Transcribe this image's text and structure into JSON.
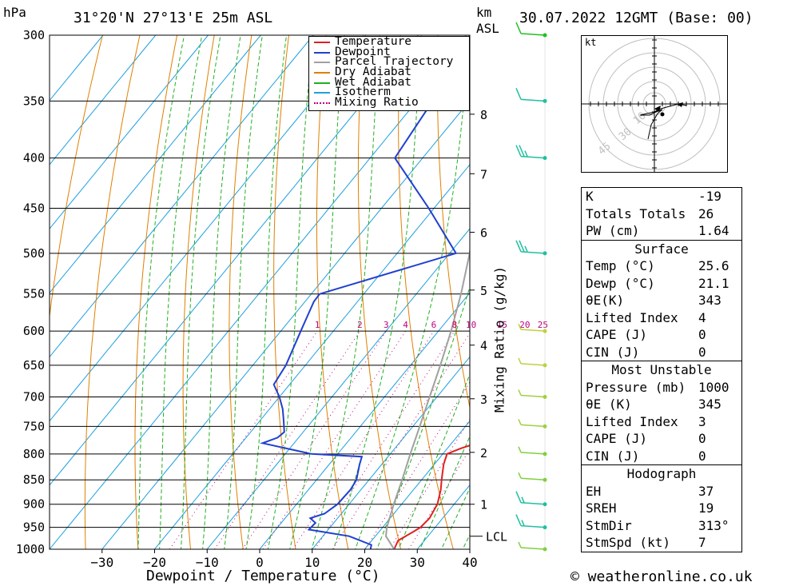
{
  "header": {
    "hpa_unit": "hPa",
    "location": "31°20'N  27°13'E  25m  ASL",
    "km_unit": "km",
    "asl_unit": "ASL",
    "datetime": "30.07.2022  12GMT  (Base: 00)"
  },
  "legend": [
    {
      "label": "Temperature",
      "color": "#e02020",
      "style": "solid"
    },
    {
      "label": "Dewpoint",
      "color": "#2040d0",
      "style": "solid"
    },
    {
      "label": "Parcel Trajectory",
      "color": "#a0a0a0",
      "style": "solid"
    },
    {
      "label": "Dry Adiabat",
      "color": "#e08000",
      "style": "solid"
    },
    {
      "label": "Wet Adiabat",
      "color": "#20b020",
      "style": "solid"
    },
    {
      "label": "Isotherm",
      "color": "#20a0e0",
      "style": "solid"
    },
    {
      "label": "Mixing Ratio",
      "color": "#c00080",
      "style": "dotted"
    }
  ],
  "chart_data": {
    "type": "line",
    "xlabel": "Dewpoint / Temperature (°C)",
    "x_ticks": [
      "−30",
      "−20",
      "−10",
      "0",
      "10",
      "20",
      "30",
      "40"
    ],
    "x_tick_values": [
      -30,
      -20,
      -10,
      0,
      10,
      20,
      30,
      40
    ],
    "xlim": [
      -40,
      40
    ],
    "pressure_levels": [
      300,
      350,
      400,
      450,
      500,
      550,
      600,
      650,
      700,
      750,
      800,
      850,
      900,
      950,
      1000
    ],
    "ylim_hpa": [
      1000,
      300
    ],
    "km_ticks": [
      "1",
      "2",
      "3",
      "4",
      "5",
      "6",
      "7",
      "8"
    ],
    "km_tick_pressures": [
      900,
      797,
      703,
      620,
      545,
      476,
      415,
      361
    ],
    "lcl_label": "LCL",
    "lcl_pressure": 970,
    "mixing_ratio_axis_label": "Mixing Ratio (g/kg)",
    "mixing_ratio_labels": [
      "1",
      "2",
      "3",
      "4",
      "6",
      "8",
      "10",
      "15",
      "20",
      "25"
    ],
    "mixing_ratio_values": [
      1,
      2,
      3,
      4,
      6,
      8,
      10,
      15,
      20,
      25
    ],
    "series": [
      {
        "name": "Temperature",
        "p": [
          1000,
          980,
          960,
          950,
          930,
          900,
          870,
          850,
          820,
          800,
          790,
          780,
          760,
          740,
          720,
          700,
          690,
          680,
          650,
          600,
          550,
          500,
          450,
          400,
          350
        ],
        "t": [
          25.6,
          25.0,
          26.5,
          27.2,
          27.5,
          26.8,
          25.2,
          23.8,
          21.8,
          20.8,
          22.5,
          24.8,
          24.8,
          24.0,
          23.0,
          21.8,
          22.3,
          22.8,
          21.4,
          18.2,
          15.0,
          11.8,
          7.4,
          2.0,
          -4.5
        ]
      },
      {
        "name": "Dewpoint",
        "p": [
          1000,
          990,
          970,
          955,
          940,
          930,
          920,
          900,
          870,
          850,
          820,
          805,
          800,
          780,
          770,
          760,
          740,
          720,
          700,
          680,
          650,
          600,
          560,
          550,
          500,
          450,
          400,
          350,
          300
        ],
        "t": [
          21.1,
          20.6,
          15.0,
          6.3,
          6.5,
          4.8,
          6.8,
          7.8,
          8.0,
          7.6,
          5.8,
          5.0,
          -5.0,
          -16.0,
          -14.0,
          -13.6,
          -15.5,
          -17.5,
          -20.0,
          -23.0,
          -23.7,
          -26.2,
          -28.3,
          -28.4,
          -8.8,
          -21.0,
          -35.3,
          -37.0,
          -29.5
        ]
      },
      {
        "name": "Parcel Trajectory",
        "p": [
          1000,
          970,
          950,
          900,
          850,
          800,
          750,
          700,
          650,
          600,
          550,
          500,
          450,
          400,
          350,
          300
        ],
        "t": [
          25.6,
          22.0,
          20.8,
          18.5,
          16.3,
          13.8,
          11.3,
          8.6,
          5.7,
          2.4,
          -1.5,
          -6.2,
          -12.0,
          -19.5,
          -29.0,
          -41.0
        ]
      }
    ]
  },
  "hodograph": {
    "unit_label": "kt",
    "ring_labels": [
      "10",
      "30",
      "45"
    ]
  },
  "wind_barbs": {
    "pressures": [
      1000,
      950,
      900,
      850,
      800,
      750,
      700,
      650,
      600,
      500,
      400,
      350,
      300
    ],
    "speeds_kt": [
      5,
      15,
      15,
      5,
      5,
      5,
      5,
      5,
      5,
      25,
      25,
      10,
      10
    ],
    "colors": [
      "#80d040",
      "#20c0a0",
      "#20c0a0",
      "#80d040",
      "#80d040",
      "#a0d040",
      "#a0d040",
      "#c0d040",
      "#c0d040",
      "#20c0a0",
      "#20c0a0",
      "#20c0a0",
      "#20c020"
    ]
  },
  "indices": {
    "k_label": "K",
    "k_value": "-19",
    "tt_label": "Totals Totals",
    "tt_value": "26",
    "pw_label": "PW (cm)",
    "pw_value": "1.64",
    "surface_title": "Surface",
    "s_temp_label": "Temp (°C)",
    "s_temp_value": "25.6",
    "s_dewp_label": "Dewp (°C)",
    "s_dewp_value": "21.1",
    "s_thetae_label": "θE(K)",
    "s_thetae_value": "343",
    "s_li_label": "Lifted Index",
    "s_li_value": "4",
    "s_cape_label": "CAPE (J)",
    "s_cape_value": "0",
    "s_cin_label": "CIN (J)",
    "s_cin_value": "0",
    "mu_title": "Most Unstable",
    "mu_pres_label": "Pressure (mb)",
    "mu_pres_value": "1000",
    "mu_thetae_label": "θE (K)",
    "mu_thetae_value": "345",
    "mu_li_label": "Lifted Index",
    "mu_li_value": "3",
    "mu_cape_label": "CAPE (J)",
    "mu_cape_value": "0",
    "mu_cin_label": "CIN (J)",
    "mu_cin_value": "0",
    "hodo_title": "Hodograph",
    "eh_label": "EH",
    "eh_value": "37",
    "sreh_label": "SREH",
    "sreh_value": "19",
    "stmdir_label": "StmDir",
    "stmdir_value": "313°",
    "stmspd_label": "StmSpd (kt)",
    "stmspd_value": "7"
  },
  "footer": {
    "copyright": "© weatheronline.co.uk"
  }
}
